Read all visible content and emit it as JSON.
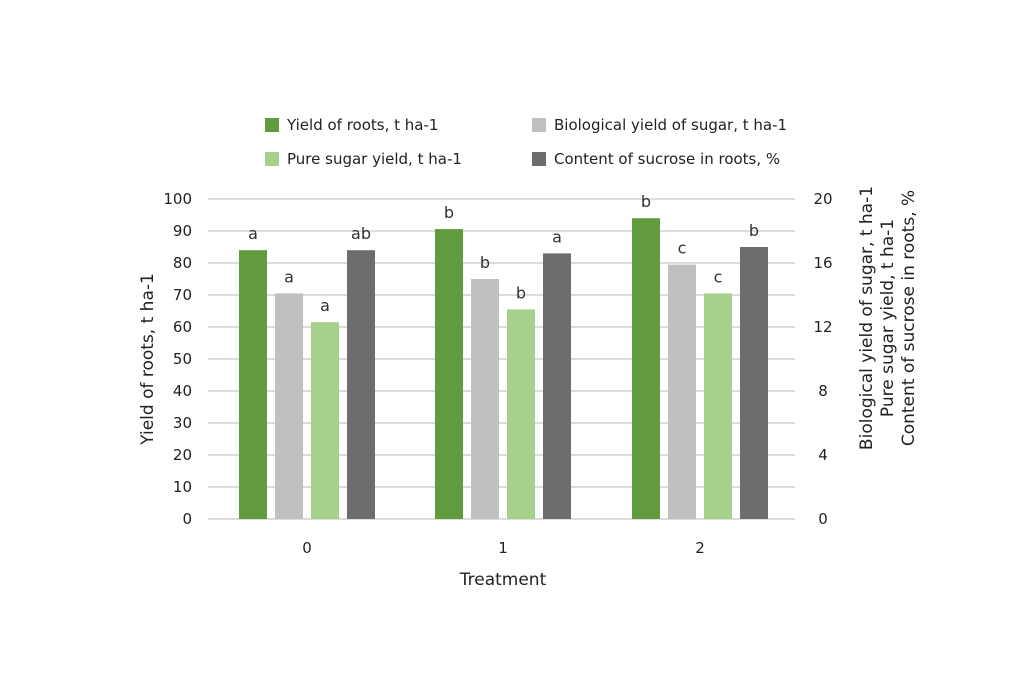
{
  "chart_data": {
    "type": "bar",
    "categories": [
      "0",
      "1",
      "2"
    ],
    "xlabel": "Treatment",
    "ylabel": "Yield of roots, t ha-1",
    "ylabel_right": [
      "Biological yield of sugar, t ha-1",
      "Pure sugar yield, t ha-1",
      "Content of sucrose in roots, %"
    ],
    "ylim": [
      0,
      100
    ],
    "ylim_right": [
      0,
      20
    ],
    "yticks": [
      "0",
      "10",
      "20",
      "30",
      "40",
      "50",
      "60",
      "70",
      "80",
      "90",
      "100"
    ],
    "yticks_right": [
      "0",
      "4",
      "8",
      "12",
      "16",
      "20"
    ],
    "grid": true,
    "legend_position": "top",
    "series": [
      {
        "name": "Yield of roots, t ha-1",
        "axis": "left",
        "color": "#629a3e",
        "values": [
          84.0,
          90.6,
          94.0
        ],
        "labels": [
          "a",
          "b",
          "b"
        ]
      },
      {
        "name": "Biological yield of sugar, t ha-1",
        "axis": "right",
        "color": "#c0c0c0",
        "values": [
          14.1,
          15.0,
          15.9
        ],
        "labels": [
          "a",
          "b",
          "c"
        ]
      },
      {
        "name": "Pure sugar yield, t ha-1",
        "axis": "right",
        "color": "#a5d18b",
        "values": [
          12.3,
          13.1,
          14.1
        ],
        "labels": [
          "a",
          "b",
          "c"
        ]
      },
      {
        "name": "Content of sucrose in roots, %",
        "axis": "right",
        "color": "#6d6d6d",
        "values": [
          16.8,
          16.6,
          17.0
        ],
        "labels": [
          "ab",
          "a",
          "b"
        ]
      }
    ]
  }
}
